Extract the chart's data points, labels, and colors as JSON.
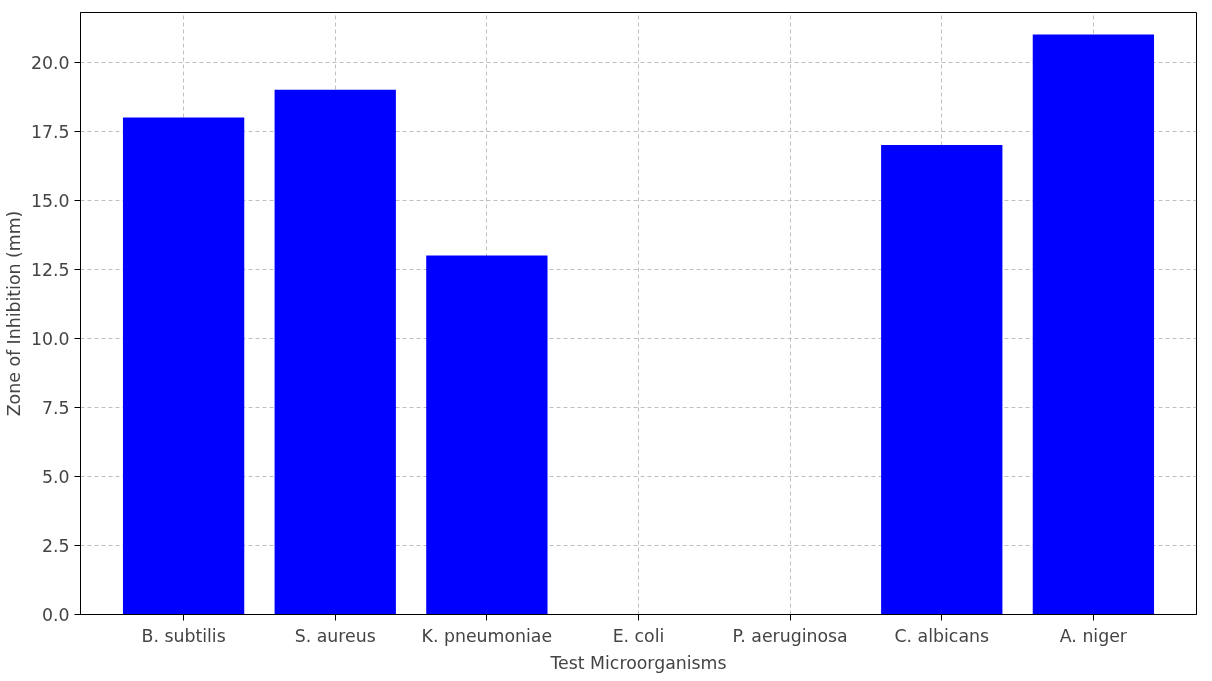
{
  "chart_data": {
    "type": "bar",
    "xlabel": "Test Microorganisms",
    "ylabel": "Zone of Inhibition (mm)",
    "categories": [
      "B. subtilis",
      "S. aureus",
      "K. pneumoniae",
      "E. coli",
      "P. aeruginosa",
      "C. albicans",
      "A. niger"
    ],
    "values": [
      18,
      19,
      13,
      0,
      0,
      17,
      21
    ],
    "color": "#0000ff",
    "ylim": [
      0,
      21.8
    ],
    "yticks": [
      {
        "value": 0,
        "label": "0.0"
      },
      {
        "value": 2.5,
        "label": "2.5"
      },
      {
        "value": 5,
        "label": "5.0"
      },
      {
        "value": 7.5,
        "label": "7.5"
      },
      {
        "value": 10,
        "label": "10.0"
      },
      {
        "value": 12.5,
        "label": "12.5"
      },
      {
        "value": 15,
        "label": "15.0"
      },
      {
        "value": 17.5,
        "label": "17.5"
      },
      {
        "value": 20,
        "label": "20.0"
      }
    ],
    "grid": true
  }
}
